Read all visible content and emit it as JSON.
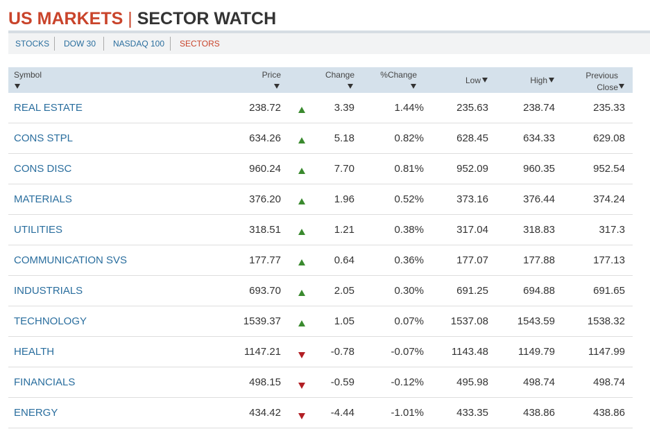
{
  "header": {
    "title_part1": "US MARKETS",
    "separator": "|",
    "title_part2": "SECTOR WATCH"
  },
  "tabs": [
    "STOCKS",
    "DOW 30",
    "NASDAQ 100",
    "SECTORS"
  ],
  "active_tab": 3,
  "table": {
    "columns": [
      "Symbol",
      "Price",
      "Change",
      "%Change",
      "Low",
      "High",
      "Previous Close"
    ],
    "rows": [
      [
        "REAL ESTATE",
        "238.72",
        "3.39",
        "1.44%",
        "235.63",
        "238.74",
        "235.33"
      ],
      [
        "CONS STPL",
        "634.26",
        "5.18",
        "0.82%",
        "628.45",
        "634.33",
        "629.08"
      ],
      [
        "CONS DISC",
        "960.24",
        "7.70",
        "0.81%",
        "952.09",
        "960.35",
        "952.54"
      ],
      [
        "MATERIALS",
        "376.20",
        "1.96",
        "0.52%",
        "373.16",
        "376.44",
        "374.24"
      ],
      [
        "UTILITIES",
        "318.51",
        "1.21",
        "0.38%",
        "317.04",
        "318.83",
        "317.3"
      ],
      [
        "COMMUNICATION SVS",
        "177.77",
        "0.64",
        "0.36%",
        "177.07",
        "177.88",
        "177.13"
      ],
      [
        "INDUSTRIALS",
        "693.70",
        "2.05",
        "0.30%",
        "691.25",
        "694.88",
        "691.65"
      ],
      [
        "TECHNOLOGY",
        "1539.37",
        "1.05",
        "0.07%",
        "1537.08",
        "1543.59",
        "1538.32"
      ],
      [
        "HEALTH",
        "1147.21",
        "-0.78",
        "-0.07%",
        "1143.48",
        "1149.79",
        "1147.99"
      ],
      [
        "FINANCIALS",
        "498.15",
        "-0.59",
        "-0.12%",
        "495.98",
        "498.74",
        "498.74"
      ],
      [
        "ENERGY",
        "434.42",
        "-4.44",
        "-1.01%",
        "433.35",
        "438.86",
        "438.86"
      ]
    ]
  }
}
